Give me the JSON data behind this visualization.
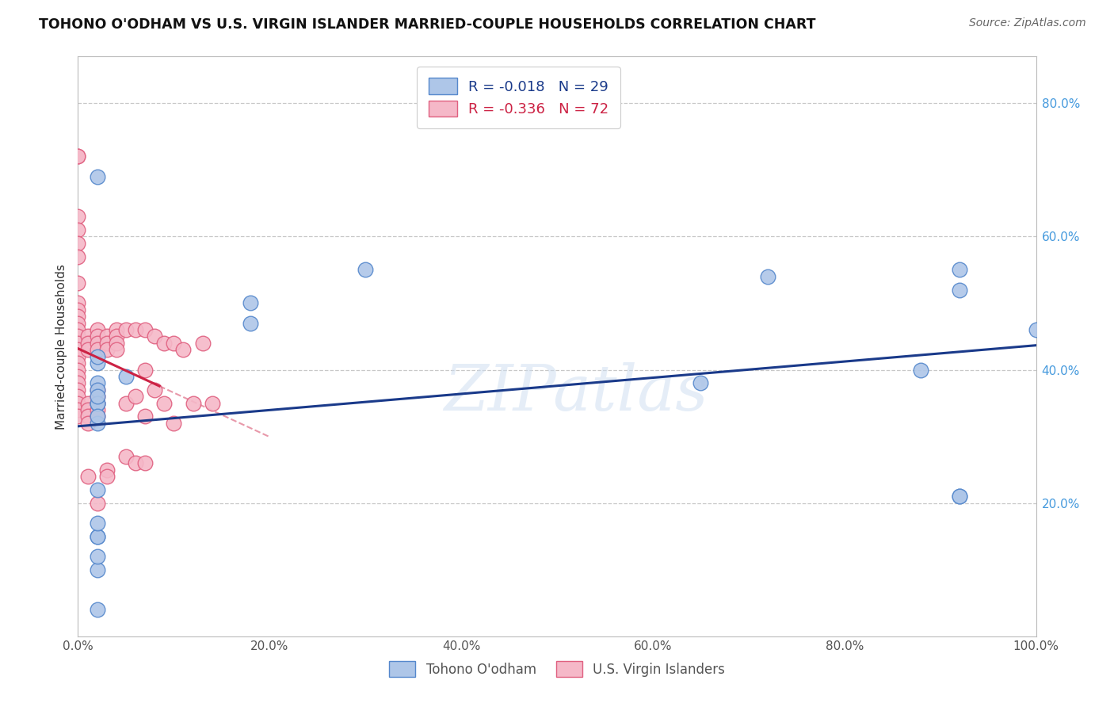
{
  "title": "TOHONO O'ODHAM VS U.S. VIRGIN ISLANDER MARRIED-COUPLE HOUSEHOLDS CORRELATION CHART",
  "source": "Source: ZipAtlas.com",
  "ylabel": "Married-couple Households",
  "watermark": "ZIPatlas",
  "legend_blue_r": "R = -0.018",
  "legend_blue_n": "N = 29",
  "legend_pink_r": "R = -0.336",
  "legend_pink_n": "N = 72",
  "blue_label": "Tohono O'odham",
  "pink_label": "U.S. Virgin Islanders",
  "blue_x": [
    0.02,
    0.05,
    0.02,
    0.18,
    0.3,
    0.02,
    0.02,
    0.72,
    0.92,
    1.0,
    0.88,
    0.92,
    0.02,
    0.02,
    0.02,
    0.18,
    0.02,
    0.65,
    0.02,
    0.02,
    0.92,
    0.02,
    0.92,
    0.02,
    0.02,
    0.02,
    0.02,
    0.02,
    0.02
  ],
  "blue_y": [
    0.38,
    0.39,
    0.15,
    0.5,
    0.55,
    0.69,
    0.41,
    0.54,
    0.55,
    0.46,
    0.4,
    0.21,
    0.37,
    0.35,
    0.32,
    0.47,
    0.22,
    0.38,
    0.35,
    0.1,
    0.21,
    0.15,
    0.52,
    0.42,
    0.36,
    0.17,
    0.12,
    0.33,
    0.04
  ],
  "pink_x": [
    0.0,
    0.0,
    0.0,
    0.0,
    0.0,
    0.0,
    0.0,
    0.0,
    0.0,
    0.0,
    0.0,
    0.0,
    0.0,
    0.0,
    0.0,
    0.0,
    0.0,
    0.0,
    0.0,
    0.0,
    0.0,
    0.0,
    0.0,
    0.0,
    0.0,
    0.01,
    0.01,
    0.01,
    0.01,
    0.01,
    0.01,
    0.01,
    0.01,
    0.02,
    0.02,
    0.02,
    0.02,
    0.02,
    0.02,
    0.02,
    0.02,
    0.02,
    0.02,
    0.03,
    0.03,
    0.03,
    0.03,
    0.03,
    0.04,
    0.04,
    0.04,
    0.04,
    0.05,
    0.05,
    0.05,
    0.06,
    0.06,
    0.06,
    0.07,
    0.07,
    0.07,
    0.07,
    0.08,
    0.08,
    0.09,
    0.09,
    0.1,
    0.1,
    0.11,
    0.12,
    0.13,
    0.14
  ],
  "pink_y": [
    0.72,
    0.72,
    0.63,
    0.61,
    0.59,
    0.57,
    0.53,
    0.5,
    0.49,
    0.48,
    0.47,
    0.46,
    0.45,
    0.44,
    0.43,
    0.42,
    0.41,
    0.4,
    0.39,
    0.38,
    0.37,
    0.36,
    0.35,
    0.34,
    0.33,
    0.45,
    0.44,
    0.43,
    0.35,
    0.34,
    0.33,
    0.32,
    0.24,
    0.46,
    0.45,
    0.44,
    0.43,
    0.37,
    0.36,
    0.35,
    0.34,
    0.33,
    0.2,
    0.45,
    0.44,
    0.43,
    0.25,
    0.24,
    0.46,
    0.45,
    0.44,
    0.43,
    0.46,
    0.35,
    0.27,
    0.46,
    0.36,
    0.26,
    0.46,
    0.4,
    0.33,
    0.26,
    0.45,
    0.37,
    0.44,
    0.35,
    0.44,
    0.32,
    0.43,
    0.35,
    0.44,
    0.35
  ],
  "blue_color": "#aec6e8",
  "pink_color": "#f5b8c8",
  "blue_edge": "#5588cc",
  "pink_edge": "#e06080",
  "blue_line_color": "#1a3a8a",
  "pink_line_color": "#cc2244",
  "pink_line_dashed_color": "#e899aa",
  "right_tick_color": "#4499dd",
  "grid_color": "#c8c8c8",
  "background": "#ffffff"
}
